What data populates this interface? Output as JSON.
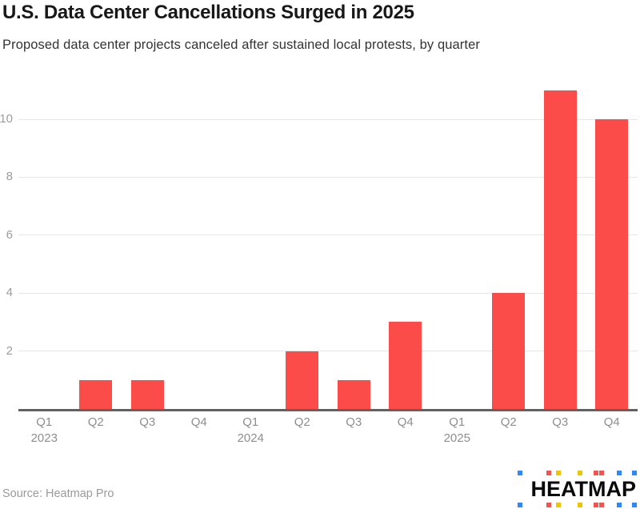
{
  "header": {
    "title": "U.S. Data Center Cancellations Surged in 2025",
    "subtitle": "Proposed data center projects canceled after sustained local protests, by quarter"
  },
  "chart_data": {
    "type": "bar",
    "title": "U.S. Data Center Cancellations Surged in 2025",
    "subtitle": "Proposed data center projects canceled after sustained local protests, by quarter",
    "categories": [
      "Q1",
      "Q2",
      "Q3",
      "Q4",
      "Q1",
      "Q2",
      "Q3",
      "Q4",
      "Q1",
      "Q2",
      "Q3",
      "Q4"
    ],
    "year_labels": [
      "2023",
      "",
      "",
      "",
      "2024",
      "",
      "",
      "",
      "2025",
      "",
      "",
      ""
    ],
    "values": [
      0,
      1,
      1,
      0,
      0,
      2,
      1,
      3,
      0,
      4,
      11,
      10
    ],
    "xlabel": "",
    "ylabel": "",
    "y_ticks": [
      2,
      4,
      6,
      8,
      10
    ],
    "ylim": [
      0,
      11.3
    ],
    "grid": true,
    "legend_position": "none",
    "bar_color": "#FC4C49"
  },
  "footer": {
    "source": "Source: Heatmap Pro",
    "logo_text": "HEATMAP",
    "logo_dot_colors": [
      "#2F89F5",
      "#F4524D",
      "#EFC400",
      "#EFC400",
      "#F4524D",
      "#F4524D",
      "#2F89F5",
      "#2F89F5"
    ]
  },
  "colors": {
    "bar": "#FC4C49",
    "grid": "#E7E7E7",
    "axis_line": "#616161",
    "y_tick_label": "#9C9C9C",
    "x_tick_label": "#8E8E8E",
    "title": "#181818",
    "subtitle": "#333333",
    "source": "#9A9A9A"
  }
}
